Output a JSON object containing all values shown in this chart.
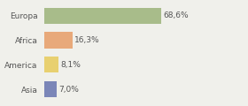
{
  "categories": [
    "Europa",
    "Africa",
    "America",
    "Asia"
  ],
  "values": [
    68.6,
    16.3,
    8.1,
    7.0
  ],
  "labels": [
    "68,6%",
    "16,3%",
    "8,1%",
    "7,0%"
  ],
  "bar_colors": [
    "#a8bc8a",
    "#e8a97a",
    "#e8d070",
    "#7b86b8"
  ],
  "background_color": "#f0f0eb",
  "xlim": [
    0,
    115
  ],
  "bar_height": 0.65,
  "label_fontsize": 6.5,
  "tick_fontsize": 6.5,
  "figsize": [
    2.8,
    1.2
  ],
  "dpi": 100
}
